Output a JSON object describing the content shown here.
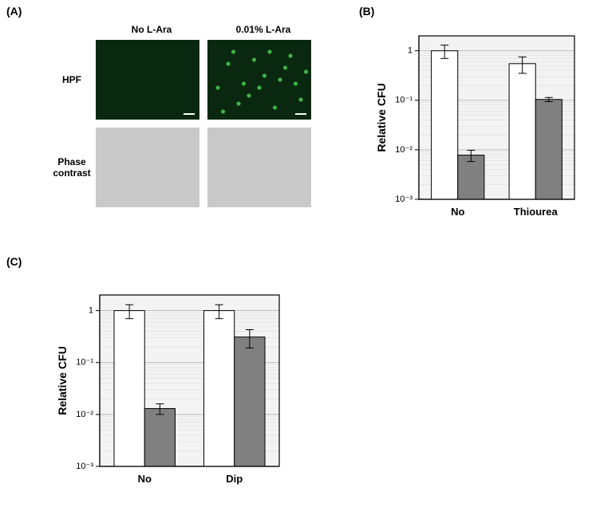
{
  "labels": {
    "panel_a": "(A)",
    "panel_b": "(B)",
    "panel_c": "(C)"
  },
  "panel_a": {
    "col_headers": [
      "No L-Ara",
      "0.01% L-Ara"
    ],
    "row_labels": [
      "HPF",
      "Phase\ncontrast"
    ],
    "scalebar_color": "#ffffff",
    "hpf_dark_bg": "#0a2810",
    "hpf_signal_color": "#3db847",
    "phase_bg": "#c9c9c9"
  },
  "panel_b": {
    "type": "bar",
    "yscale": "log",
    "ylabel": "Relative CFU",
    "ylim": [
      0.001,
      2
    ],
    "yticks": [
      0.001,
      0.01,
      0.1,
      1
    ],
    "ytick_labels": [
      "10⁻³",
      "10⁻²",
      "10⁻¹",
      "1"
    ],
    "categories": [
      "No",
      "Thiourea"
    ],
    "series": [
      {
        "name": "white",
        "color": "#ffffff",
        "values": [
          1.0,
          0.55
        ],
        "errors": [
          0.3,
          0.2
        ]
      },
      {
        "name": "gray",
        "color": "#808080",
        "values": [
          0.0078,
          0.104
        ],
        "errors": [
          0.002,
          0.01
        ]
      }
    ],
    "bar_width": 0.34,
    "background_color": "#f3f3f3",
    "grid_color": "#c0c0c0",
    "label_fontsize": 14
  },
  "panel_c": {
    "type": "bar",
    "yscale": "log",
    "ylabel": "Relative CFU",
    "ylim": [
      0.001,
      2
    ],
    "yticks": [
      0.001,
      0.01,
      0.1,
      1
    ],
    "ytick_labels": [
      "10⁻³",
      "10⁻²",
      "10⁻¹",
      "1"
    ],
    "categories": [
      "No",
      "Dip"
    ],
    "series": [
      {
        "name": "white",
        "color": "#ffffff",
        "values": [
          1.0,
          1.0
        ],
        "errors": [
          0.3,
          0.3
        ]
      },
      {
        "name": "gray",
        "color": "#808080",
        "values": [
          0.013,
          0.31
        ],
        "errors": [
          0.003,
          0.12
        ]
      }
    ],
    "bar_width": 0.34,
    "background_color": "#f3f3f3",
    "grid_color": "#c0c0c0",
    "label_fontsize": 14
  }
}
